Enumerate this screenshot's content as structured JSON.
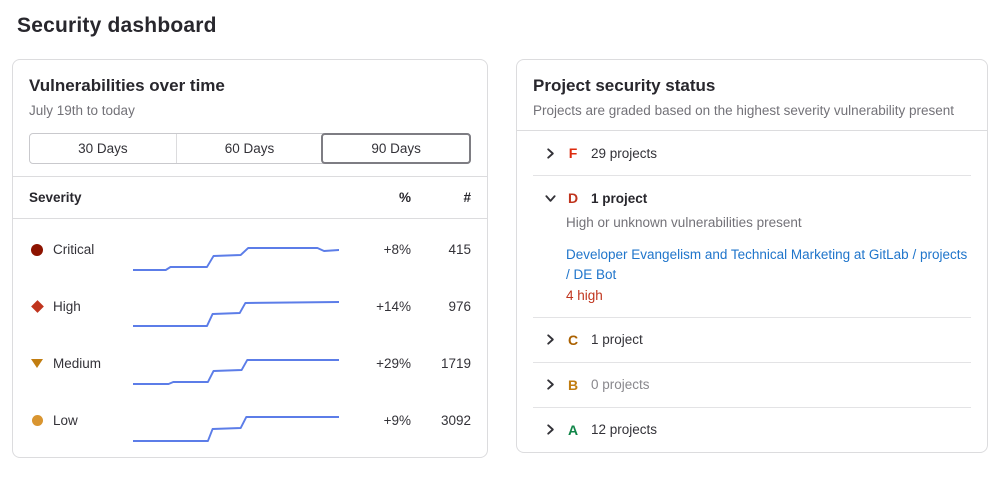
{
  "page": {
    "title": "Security dashboard"
  },
  "vulnerabilities": {
    "title": "Vulnerabilities over time",
    "subtitle": "July 19th to today",
    "ranges": [
      {
        "label": "30 Days",
        "selected": false
      },
      {
        "label": "60 Days",
        "selected": false
      },
      {
        "label": "90 Days",
        "selected": true
      }
    ],
    "columns": {
      "severity": "Severity",
      "percent": "%",
      "count": "#"
    },
    "sparkline_color": "#5c7de8",
    "rows": [
      {
        "severity": "Critical",
        "icon": "critical-severity-icon",
        "color": "#8d1300",
        "percent": "+8%",
        "count": "415",
        "sparkline": [
          [
            0,
            33
          ],
          [
            35,
            33
          ],
          [
            40,
            30
          ],
          [
            79,
            30
          ],
          [
            86,
            19
          ],
          [
            115,
            18
          ],
          [
            123,
            11
          ],
          [
            197,
            11
          ],
          [
            204,
            14
          ],
          [
            220,
            13
          ]
        ]
      },
      {
        "severity": "High",
        "icon": "high-severity-icon",
        "color": "#c0341d",
        "percent": "+14%",
        "count": "976",
        "sparkline": [
          [
            0,
            32
          ],
          [
            79,
            32
          ],
          [
            85,
            20
          ],
          [
            114,
            19
          ],
          [
            120,
            9
          ],
          [
            220,
            8
          ]
        ]
      },
      {
        "severity": "Medium",
        "icon": "medium-severity-icon",
        "color": "#c17d10",
        "percent": "+29%",
        "count": "1719",
        "sparkline": [
          [
            0,
            33
          ],
          [
            38,
            33
          ],
          [
            43,
            31
          ],
          [
            80,
            31
          ],
          [
            86,
            20
          ],
          [
            116,
            19
          ],
          [
            122,
            9
          ],
          [
            220,
            9
          ]
        ]
      },
      {
        "severity": "Low",
        "icon": "low-severity-icon",
        "color": "#d99530",
        "percent": "+9%",
        "count": "3092",
        "sparkline": [
          [
            0,
            33
          ],
          [
            80,
            33
          ],
          [
            85,
            21
          ],
          [
            115,
            20
          ],
          [
            121,
            9
          ],
          [
            220,
            9
          ]
        ]
      }
    ]
  },
  "securityStatus": {
    "title": "Project security status",
    "subtitle": "Projects are graded based on the highest severity vulnerability present",
    "link_color": "#1f75cb",
    "grades": [
      {
        "letter": "F",
        "color": "#dd2b0e",
        "count_label": "29 projects",
        "expanded": false,
        "chevron": "chevron-right-icon"
      },
      {
        "letter": "D",
        "color": "#c0341d",
        "count_label": "1 project",
        "expanded": true,
        "chevron": "chevron-down-icon",
        "description": "High or unknown vulnerabilities present",
        "project_link": "Developer Evangelism and Technical Marketing at GitLab / projects / DE Bot",
        "vulnerability_summary": "4 high"
      },
      {
        "letter": "C",
        "color": "#ab6100",
        "count_label": "1 project",
        "expanded": false,
        "chevron": "chevron-right-icon"
      },
      {
        "letter": "B",
        "color": "#c17d10",
        "count_label": "0 projects",
        "expanded": false,
        "muted": true,
        "chevron": "chevron-right-icon"
      },
      {
        "letter": "A",
        "color": "#108548",
        "count_label": "12 projects",
        "expanded": false,
        "chevron": "chevron-right-icon"
      }
    ]
  }
}
